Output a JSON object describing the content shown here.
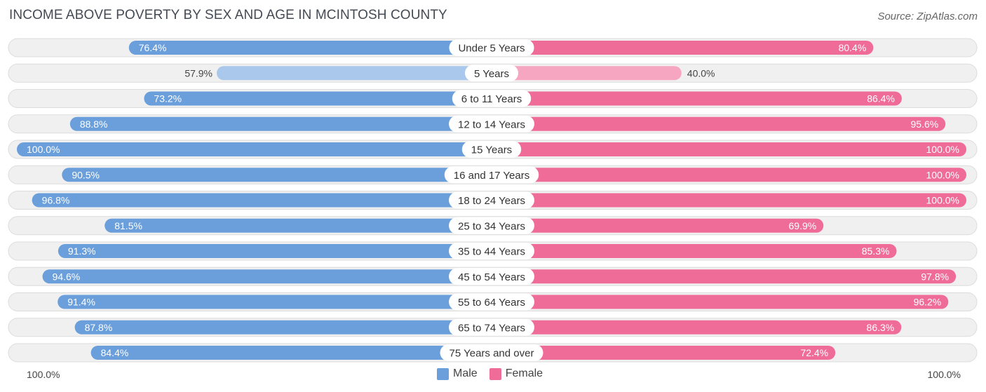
{
  "header": {
    "title": "INCOME ABOVE POVERTY BY SEX AND AGE IN MCINTOSH COUNTY",
    "source": "Source: ZipAtlas.com"
  },
  "axis": {
    "left_label": "100.0%",
    "right_label": "100.0%"
  },
  "legend": {
    "male_label": "Male",
    "female_label": "Female"
  },
  "colors": {
    "male_strong": "#6a9fdb",
    "male_light": "#a9c8ec",
    "female_strong": "#f06c98",
    "female_light": "#f7a6c2",
    "track": "#f0f0f0",
    "track_border": "#dcdcdc"
  },
  "chart_data": {
    "type": "bar",
    "orientation": "horizontal-diverging",
    "title": "INCOME ABOVE POVERTY BY SEX AND AGE IN MCINTOSH COUNTY",
    "xlim": [
      0,
      100
    ],
    "categories": [
      "Under 5 Years",
      "5 Years",
      "6 to 11 Years",
      "12 to 14 Years",
      "15 Years",
      "16 and 17 Years",
      "18 to 24 Years",
      "25 to 34 Years",
      "35 to 44 Years",
      "45 to 54 Years",
      "55 to 64 Years",
      "65 to 74 Years",
      "75 Years and over"
    ],
    "series": [
      {
        "name": "Male",
        "values": [
          76.4,
          57.9,
          73.2,
          88.8,
          100.0,
          90.5,
          96.8,
          81.5,
          91.3,
          94.6,
          91.4,
          87.8,
          84.4
        ],
        "labels": [
          "76.4%",
          "57.9%",
          "73.2%",
          "88.8%",
          "100.0%",
          "90.5%",
          "96.8%",
          "81.5%",
          "91.3%",
          "94.6%",
          "91.4%",
          "87.8%",
          "84.4%"
        ]
      },
      {
        "name": "Female",
        "values": [
          80.4,
          40.0,
          86.4,
          95.6,
          100.0,
          100.0,
          100.0,
          69.9,
          85.3,
          97.8,
          96.2,
          86.3,
          72.4
        ],
        "labels": [
          "80.4%",
          "40.0%",
          "86.4%",
          "95.6%",
          "100.0%",
          "100.0%",
          "100.0%",
          "69.9%",
          "85.3%",
          "97.8%",
          "96.2%",
          "86.3%",
          "72.4%"
        ]
      }
    ]
  }
}
